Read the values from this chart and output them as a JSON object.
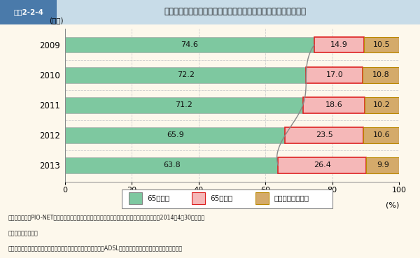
{
  "title": "図表2-2-4",
  "subtitle": "「インターネット接続回線」に関する高齢者の相談の割合が増加",
  "years": [
    2009,
    2010,
    2011,
    2012,
    2013
  ],
  "under65": [
    74.6,
    72.2,
    71.2,
    65.9,
    63.8
  ],
  "over65": [
    14.9,
    17.0,
    18.6,
    23.5,
    26.4
  ],
  "no_answer": [
    10.5,
    10.8,
    10.2,
    10.6,
    9.9
  ],
  "color_under65": "#7ec8a0",
  "color_over65": "#f5b8b8",
  "color_no_answer": "#d4aa6a",
  "border_under65": "#888888",
  "border_over65": "#dd2222",
  "border_no_answer": "#bb8800",
  "background_color": "#fdf8ec",
  "header_bg": "#4a7aaa",
  "header_text_bg": "#c8dce8",
  "ylabel_text": "(年度)",
  "xlabel_text": "(%)",
  "xlim": [
    0,
    100
  ],
  "xticks": [
    0,
    20,
    40,
    60,
    80,
    100
  ],
  "legend_under65": "65歳未満",
  "legend_over65": "65歳以上",
  "legend_no_answer": "無回答（未入力）",
  "note_line1": "（備考）　１．PIO-NETに登録された「インターネット接続回線」に関する消費生活相談情報（2014年4月30日までの",
  "note_line2": "　　　　登録分）。",
  "note_line3": "　　　　２．「インターネット接続回線」とは、光ファイバーやADSL等の料金やサービスの内容に関するもの。"
}
